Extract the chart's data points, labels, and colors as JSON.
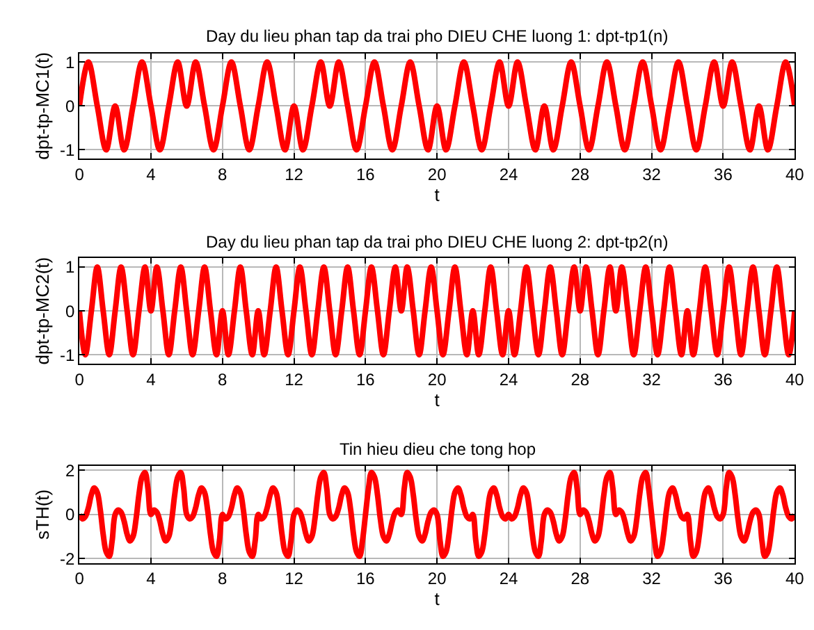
{
  "chart_data": [
    {
      "type": "line",
      "title": "Day du lieu phan tap da trai pho DIEU CHE luong 1: dpt-tp1(n)",
      "xlabel": "t",
      "ylabel": "dpt-tp-MC1(t)",
      "x": [
        0,
        0.5,
        1,
        1.5,
        2,
        2.5,
        3,
        3.5,
        4,
        4.5,
        5,
        5.5,
        6,
        6.5,
        7,
        7.5,
        8,
        8.5,
        9,
        9.5,
        10,
        10.5,
        11,
        11.5,
        12,
        12.5,
        13,
        13.5,
        14,
        14.5,
        15,
        15.5,
        16,
        16.5,
        17,
        17.5,
        18,
        18.5,
        19,
        19.5,
        20,
        20.5,
        21,
        21.5,
        22,
        22.5,
        23,
        23.5,
        24,
        24.5,
        25,
        25.5,
        26,
        26.5,
        27,
        27.5,
        28,
        28.5,
        29,
        29.5,
        30,
        30.5,
        31,
        31.5,
        32,
        32.5,
        33,
        33.5,
        34,
        34.5,
        35,
        35.5,
        36,
        36.5,
        37,
        37.5,
        38,
        38.5,
        39,
        39.5,
        40
      ],
      "series": [
        {
          "color": "#ff0000",
          "values": [
            0,
            1,
            0,
            -1,
            0,
            -1,
            0,
            1,
            0,
            -1,
            0,
            1,
            0,
            1,
            0,
            -1,
            0,
            1,
            0,
            -1,
            0,
            1,
            0,
            -1,
            0,
            -1,
            0,
            1,
            0,
            1,
            0,
            -1,
            0,
            1,
            0,
            -1,
            0,
            1,
            0,
            -1,
            0,
            -1,
            0,
            1,
            0,
            -1,
            0,
            1,
            0,
            1,
            0,
            -1,
            0,
            -1,
            0,
            1,
            0,
            -1,
            0,
            1,
            0,
            -1,
            0,
            1,
            0,
            -1,
            0,
            1,
            0,
            -1,
            0,
            1,
            0,
            1,
            0,
            -1,
            0,
            -1,
            0,
            1,
            0
          ]
        }
      ],
      "xlim": [
        0,
        40
      ],
      "ylim": [
        -1.2,
        1.2
      ],
      "xticks": [
        0,
        4,
        8,
        12,
        16,
        20,
        24,
        28,
        32,
        36,
        40
      ],
      "yticks": [
        -1,
        0,
        1
      ],
      "grid": true,
      "line_style": "solid"
    },
    {
      "type": "line",
      "title": "Day du lieu phan tap da trai pho DIEU CHE luong 2: dpt-tp2(n)",
      "xlabel": "t",
      "ylabel": "dpt-tp-MC2(t)",
      "x": [
        0,
        0.33,
        0.67,
        1,
        1.33,
        1.67,
        2,
        2.33,
        2.67,
        3,
        3.33,
        3.67,
        4,
        4.33,
        4.67,
        5,
        5.33,
        5.67,
        6,
        6.33,
        6.67,
        7,
        7.33,
        7.67,
        8,
        8.33,
        8.67,
        9,
        9.33,
        9.67,
        10,
        10.33,
        10.67,
        11,
        11.33,
        11.67,
        12,
        12.33,
        12.67,
        13,
        13.33,
        13.67,
        14,
        14.33,
        14.67,
        15,
        15.33,
        15.67,
        16,
        16.33,
        16.67,
        17,
        17.33,
        17.67,
        18,
        18.33,
        18.67,
        19,
        19.33,
        19.67,
        20,
        20.33,
        20.67,
        21,
        21.33,
        21.67,
        22,
        22.33,
        22.67,
        23,
        23.33,
        23.67,
        24,
        24.33,
        24.67,
        25,
        25.33,
        25.67,
        26,
        26.33,
        26.67,
        27,
        27.33,
        27.67,
        28,
        28.33,
        28.67,
        29,
        29.33,
        29.67,
        30,
        30.33,
        30.67,
        31,
        31.33,
        31.67,
        32,
        32.33,
        32.67,
        33,
        33.33,
        33.67,
        34,
        34.33,
        34.67,
        35,
        35.33,
        35.67,
        36,
        36.33,
        36.67,
        37,
        37.33,
        37.67,
        38,
        38.33,
        38.67,
        39,
        39.33,
        39.67,
        40
      ],
      "series": [
        {
          "color": "#ff0000",
          "values": [
            0,
            -1,
            0,
            1,
            0,
            -1,
            0,
            1,
            0,
            -1,
            0,
            1,
            0,
            1,
            0,
            -1,
            0,
            1,
            0,
            -1,
            0,
            1,
            0,
            -1,
            0,
            -1,
            0,
            1,
            0,
            -1,
            0,
            -1,
            0,
            1,
            0,
            -1,
            0,
            1,
            0,
            -1,
            0,
            1,
            0,
            -1,
            0,
            1,
            0,
            -1,
            0,
            1,
            0,
            -1,
            0,
            1,
            0,
            1,
            0,
            -1,
            0,
            1,
            0,
            -1,
            0,
            1,
            0,
            -1,
            0,
            -1,
            0,
            1,
            0,
            -1,
            0,
            -1,
            0,
            1,
            0,
            -1,
            0,
            1,
            0,
            -1,
            0,
            1,
            0,
            1,
            0,
            -1,
            0,
            1,
            0,
            1,
            0,
            -1,
            0,
            1,
            0,
            -1,
            0,
            1,
            0,
            -1,
            0,
            -1,
            0,
            1,
            0,
            -1,
            0,
            1,
            0,
            -1,
            0,
            1,
            0,
            -1,
            0,
            1,
            0,
            -1,
            0
          ]
        }
      ],
      "xlim": [
        0,
        40
      ],
      "ylim": [
        -1.2,
        1.2
      ],
      "xticks": [
        0,
        4,
        8,
        12,
        16,
        20,
        24,
        28,
        32,
        36,
        40
      ],
      "yticks": [
        -1,
        0,
        1
      ],
      "grid": true,
      "line_style": "solid"
    },
    {
      "type": "line",
      "title": "Tin hieu dieu che tong hop",
      "xlabel": "t",
      "ylabel": "sTH(t)",
      "x": [
        0,
        0.17,
        0.33,
        0.5,
        0.67,
        0.83,
        1,
        1.17,
        1.33,
        1.5,
        1.67,
        1.83,
        2,
        2.17,
        2.33,
        2.5,
        2.67,
        2.83,
        3,
        3.17,
        3.33,
        3.5,
        3.67,
        3.83,
        4,
        4.17,
        4.33,
        4.5,
        4.67,
        4.83,
        5,
        5.17,
        5.33,
        5.5,
        5.67,
        5.83,
        6,
        6.17,
        6.33,
        6.5,
        6.67,
        6.83,
        7,
        7.17,
        7.33,
        7.5,
        7.67,
        7.83,
        8,
        8.17,
        8.33,
        8.5,
        8.67,
        8.83,
        9,
        9.17,
        9.33,
        9.5,
        9.67,
        9.83,
        10,
        10.17,
        10.33,
        10.5,
        10.67,
        10.83,
        11,
        11.17,
        11.33,
        11.5,
        11.67,
        11.83,
        12,
        12.17,
        12.33,
        12.5,
        12.67,
        12.83,
        13,
        13.17,
        13.33,
        13.5,
        13.67,
        13.83,
        14,
        14.17,
        14.33,
        14.5,
        14.67,
        14.83,
        15,
        15.17,
        15.33,
        15.5,
        15.67,
        15.83,
        16,
        16.17,
        16.33,
        16.5,
        16.67,
        16.83,
        17,
        17.17,
        17.33,
        17.5,
        17.67,
        17.83,
        18,
        18.17,
        18.33,
        18.5,
        18.67,
        18.83,
        19,
        19.17,
        19.33,
        19.5,
        19.67,
        19.83,
        20,
        20.17,
        20.33,
        20.5,
        20.67,
        20.83,
        21,
        21.17,
        21.33,
        21.5,
        21.67,
        21.83,
        22,
        22.17,
        22.33,
        22.5,
        22.67,
        22.83,
        23,
        23.17,
        23.33,
        23.5,
        23.67,
        23.83,
        24,
        24.17,
        24.33,
        24.5,
        24.67,
        24.83,
        25,
        25.17,
        25.33,
        25.5,
        25.67,
        25.83,
        26,
        26.17,
        26.33,
        26.5,
        26.67,
        26.83,
        27,
        27.17,
        27.33,
        27.5,
        27.67,
        27.83,
        28,
        28.17,
        28.33,
        28.5,
        28.67,
        28.83,
        29,
        29.17,
        29.33,
        29.5,
        29.67,
        29.83,
        30,
        30.17,
        30.33,
        30.5,
        30.67,
        30.83,
        31,
        31.17,
        31.33,
        31.5,
        31.67,
        31.83,
        32,
        32.17,
        32.33,
        32.5,
        32.67,
        32.83,
        33,
        33.17,
        33.33,
        33.5,
        33.67,
        33.83,
        34,
        34.17,
        34.33,
        34.5,
        34.67,
        34.83,
        35,
        35.17,
        35.33,
        35.5,
        35.67,
        35.83,
        36,
        36.17,
        36.33,
        36.5,
        36.67,
        36.83,
        37,
        37.17,
        37.33,
        37.5,
        37.67,
        37.83,
        38,
        38.17,
        38.33,
        38.5,
        38.67,
        38.83,
        39,
        39.17,
        39.33,
        39.5,
        39.67,
        39.83,
        40
      ],
      "series": [
        {
          "color": "#ff0000",
          "values": [
            0,
            -0.2,
            -0.1,
            0.3,
            0.9,
            1.2,
            1,
            0.2,
            -0.9,
            -1.7,
            -1.9,
            -1.2,
            0,
            0.2,
            0.1,
            -0.3,
            -0.9,
            -1.2,
            -1,
            -0.2,
            0.9,
            1.7,
            1.9,
            1.2,
            0,
            0.2,
            0.1,
            -0.3,
            -0.9,
            -1.2,
            -1,
            -0.2,
            0.9,
            1.7,
            1.9,
            1.2,
            0,
            -0.2,
            -0.1,
            0.3,
            0.9,
            1.2,
            1,
            0.2,
            -0.9,
            -1.7,
            -1.9,
            -1.2,
            0,
            -0.2,
            -0.1,
            0.3,
            0.9,
            1.2,
            1,
            0.2,
            -0.9,
            -1.7,
            -1.9,
            -1.2,
            0,
            -0.2,
            -0.1,
            0.3,
            0.9,
            1.2,
            1,
            0.2,
            -0.9,
            -1.7,
            -1.9,
            -1.2,
            0,
            0.2,
            0.1,
            -0.3,
            -0.9,
            -1.2,
            -1,
            -0.2,
            0.9,
            1.7,
            1.9,
            1.2,
            0,
            -0.2,
            -0.1,
            0.3,
            0.9,
            1.2,
            1,
            0.2,
            -0.9,
            -1.7,
            -1.9,
            -1.2,
            0,
            1.2,
            1.9,
            1.7,
            0.9,
            -0.2,
            -1,
            -1.2,
            -0.9,
            -0.3,
            0.1,
            0.2,
            0,
            1.2,
            1.9,
            1.7,
            0.9,
            -0.2,
            -1,
            -1.2,
            -0.9,
            -0.3,
            0.1,
            0.2,
            0,
            -1.2,
            -1.9,
            -1.7,
            -0.9,
            0.2,
            1,
            1.2,
            0.9,
            0.3,
            -0.1,
            -0.2,
            0,
            -1.2,
            -1.9,
            -1.7,
            -0.9,
            0.2,
            1,
            1.2,
            0.9,
            0.3,
            -0.1,
            -0.2,
            0,
            -0.2,
            -0.1,
            0.3,
            0.9,
            1.2,
            1,
            0.2,
            -0.9,
            -1.7,
            -1.9,
            -1.2,
            0,
            0.2,
            0.1,
            -0.3,
            -0.9,
            -1.2,
            -1,
            -0.2,
            0.9,
            1.7,
            1.9,
            1.2,
            0,
            0.2,
            0.1,
            -0.3,
            -0.9,
            -1.2,
            -1,
            -0.2,
            0.9,
            1.7,
            1.9,
            1.2,
            0,
            0.2,
            0.1,
            -0.3,
            -0.9,
            -1.2,
            -1,
            -0.2,
            0.9,
            1.7,
            1.9,
            1.2,
            0,
            -1.2,
            -1.9,
            -1.7,
            -0.9,
            0.2,
            1,
            1.2,
            0.9,
            0.3,
            -0.1,
            -0.2,
            0,
            -1.2,
            -1.9,
            -1.7,
            -0.9,
            0.2,
            1,
            1.2,
            0.9,
            0.3,
            -0.1,
            -0.2,
            0,
            1.2,
            1.9,
            1.7,
            0.9,
            -0.2,
            -1,
            -1.2,
            -0.9,
            -0.3,
            0.1,
            0.2,
            0,
            -1.2,
            -1.9,
            -1.7,
            -0.9,
            0.2,
            1,
            1.2,
            0.9,
            0.3,
            -0.1,
            -0.2,
            0
          ]
        }
      ],
      "xlim": [
        0,
        40
      ],
      "ylim": [
        -2.2,
        2.2
      ],
      "xticks": [
        0,
        4,
        8,
        12,
        16,
        20,
        24,
        28,
        32,
        36,
        40
      ],
      "yticks": [
        -2,
        0,
        2
      ],
      "grid": true,
      "line_style": "solid"
    }
  ]
}
